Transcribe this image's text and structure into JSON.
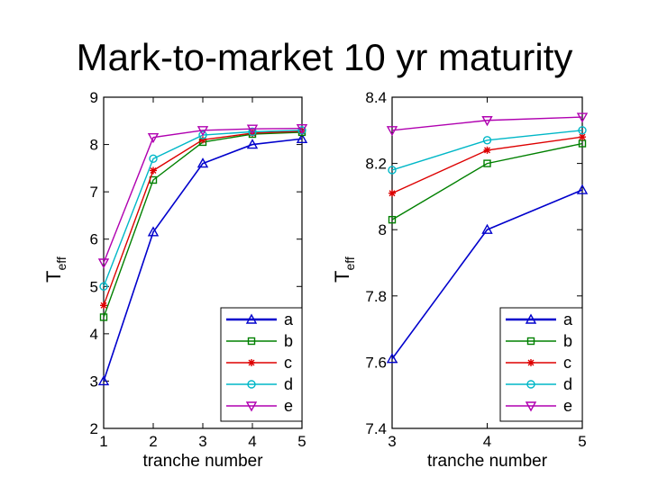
{
  "slide": {
    "title": "Mark-to-market 10 yr maturity"
  },
  "series_colors": {
    "a": "#0000cc",
    "b": "#008000",
    "c": "#dd0000",
    "d": "#00b7c7",
    "e": "#b000b0"
  },
  "chart_data": [
    {
      "type": "line",
      "xlabel": "tranche number",
      "ylabel": "T",
      "ylabel_subscript": "eff",
      "xlim": [
        1,
        5
      ],
      "ylim": [
        2,
        9
      ],
      "xticks": [
        1,
        2,
        3,
        4,
        5
      ],
      "yticks": [
        2,
        3,
        4,
        5,
        6,
        7,
        8,
        9
      ],
      "legend_position": "bottom-right",
      "x": [
        1,
        2,
        3,
        4,
        5
      ],
      "series": [
        {
          "name": "a",
          "marker": "triangle-up",
          "values": [
            3.0,
            6.15,
            7.6,
            8.0,
            8.12
          ]
        },
        {
          "name": "b",
          "marker": "square",
          "values": [
            4.35,
            7.25,
            8.05,
            8.22,
            8.26
          ]
        },
        {
          "name": "c",
          "marker": "star",
          "values": [
            4.6,
            7.45,
            8.1,
            8.24,
            8.28
          ]
        },
        {
          "name": "d",
          "marker": "circle",
          "values": [
            5.0,
            7.7,
            8.2,
            8.27,
            8.3
          ]
        },
        {
          "name": "e",
          "marker": "triangle-down",
          "values": [
            5.5,
            8.15,
            8.3,
            8.33,
            8.34
          ]
        }
      ]
    },
    {
      "type": "line",
      "xlabel": "tranche number",
      "ylabel": "T",
      "ylabel_subscript": "eff",
      "xlim": [
        3,
        5
      ],
      "ylim": [
        7.4,
        8.4
      ],
      "xticks": [
        3,
        4,
        5
      ],
      "yticks": [
        7.4,
        7.6,
        7.8,
        8.0,
        8.2,
        8.4
      ],
      "ytick_labels": [
        "7.4",
        "7.6",
        "7.8",
        "8",
        "8.2",
        "8.4"
      ],
      "legend_position": "bottom-right",
      "x": [
        3,
        4,
        5
      ],
      "series": [
        {
          "name": "a",
          "marker": "triangle-up",
          "values": [
            7.61,
            8.0,
            8.12
          ]
        },
        {
          "name": "b",
          "marker": "square",
          "values": [
            8.03,
            8.2,
            8.26
          ]
        },
        {
          "name": "c",
          "marker": "star",
          "values": [
            8.11,
            8.24,
            8.28
          ]
        },
        {
          "name": "d",
          "marker": "circle",
          "values": [
            8.18,
            8.27,
            8.3
          ]
        },
        {
          "name": "e",
          "marker": "triangle-down",
          "values": [
            8.3,
            8.33,
            8.34
          ]
        }
      ]
    }
  ]
}
